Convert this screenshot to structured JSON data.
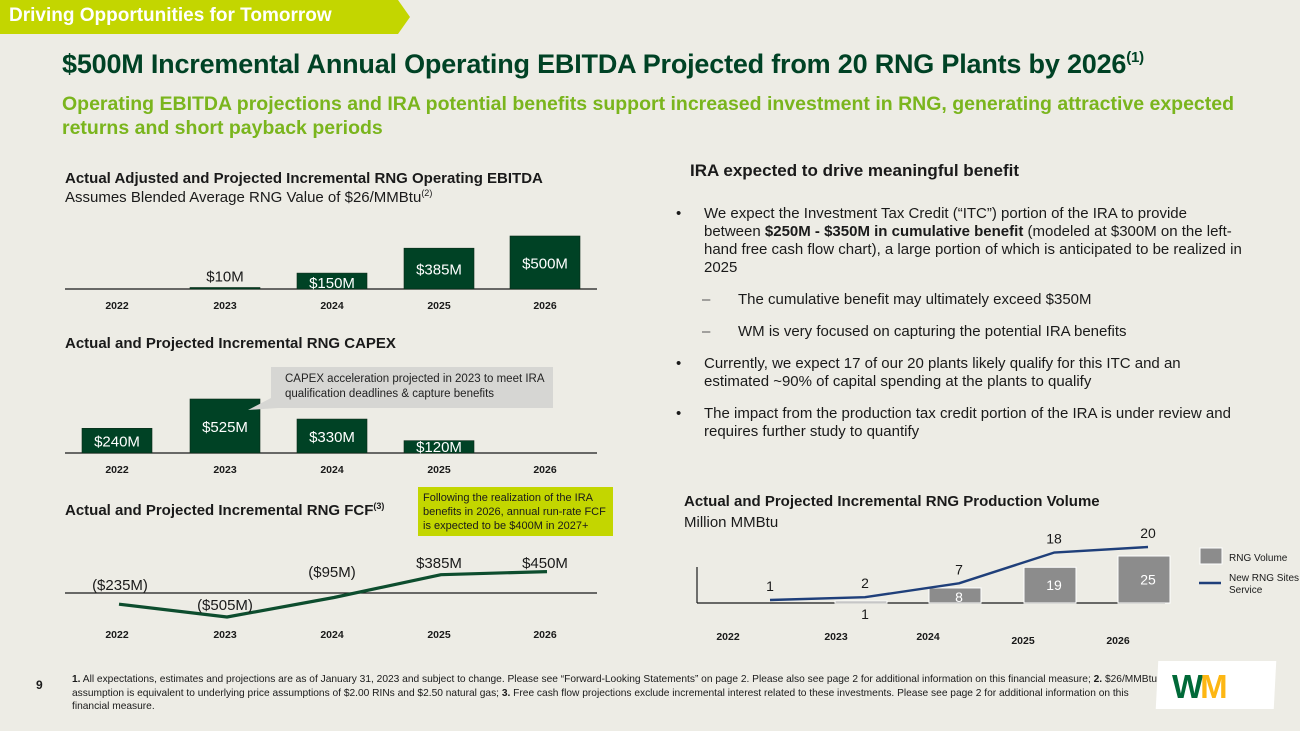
{
  "banner": {
    "text": "Driving Opportunities for Tomorrow",
    "color": "#c3d600"
  },
  "header": {
    "title": "$500M Incremental Annual Operating EBITDA Projected from 20 RNG Plants by 2026",
    "title_sup": "(1)",
    "subtitle": "Operating EBITDA projections and IRA potential benefits support increased investment in RNG, generating attractive expected returns and short payback periods"
  },
  "colors": {
    "dark_green": "#004225",
    "lime": "#7ab51d",
    "gray_bar": "#8c8c8c",
    "navy_line": "#1f3f7a"
  },
  "ebitda_chart": {
    "title": "Actual Adjusted and Projected Incremental RNG Operating EBITDA",
    "subtitle": "Assumes Blended Average RNG Value of $26/MMBtu",
    "subtitle_sup": "(2)"
  },
  "capex_chart": {
    "title": "Actual and Projected Incremental RNG CAPEX",
    "callout": "CAPEX acceleration projected in 2023 to meet IRA qualification deadlines & capture benefits"
  },
  "fcf_chart": {
    "title": "Actual and Projected Incremental RNG FCF",
    "title_sup": "(3)",
    "callout": "Following the realization of the IRA benefits in 2026, annual run-rate FCF is expected to be $400M in 2027+"
  },
  "volume_chart": {
    "title": "Actual and Projected Incremental RNG Production Volume",
    "subtitle": "Million MMBtu"
  },
  "chart_data": [
    {
      "type": "bar",
      "title": "Actual Adjusted and Projected Incremental RNG Operating EBITDA",
      "categories": [
        "2022",
        "2023",
        "2024",
        "2025",
        "2026"
      ],
      "values": [
        0,
        10,
        150,
        385,
        500
      ],
      "labels": [
        "",
        "$10M",
        "$150M",
        "$385M",
        "$500M"
      ],
      "unit": "$M",
      "ylim": [
        0,
        500
      ]
    },
    {
      "type": "bar",
      "title": "Actual and Projected Incremental RNG CAPEX",
      "categories": [
        "2022",
        "2023",
        "2024",
        "2025",
        "2026"
      ],
      "values": [
        240,
        525,
        330,
        120,
        0
      ],
      "labels": [
        "$240M",
        "$525M",
        "$330M",
        "$120M",
        ""
      ],
      "unit": "$M",
      "ylim": [
        0,
        525
      ]
    },
    {
      "type": "line",
      "title": "Actual and Projected Incremental RNG FCF",
      "categories": [
        "2022",
        "2023",
        "2024",
        "2025",
        "2026"
      ],
      "values": [
        -235,
        -505,
        -95,
        385,
        450
      ],
      "labels": [
        "($235M)",
        "($505M)",
        "($95M)",
        "$385M",
        "$450M"
      ],
      "unit": "$M"
    },
    {
      "type": "bar",
      "title": "Actual and Projected Incremental RNG Production Volume",
      "ylabel": "Million MMBtu",
      "categories": [
        "2022",
        "2023",
        "2024",
        "2025",
        "2026"
      ],
      "series": [
        {
          "name": "RNG Volume",
          "type": "bar",
          "values": [
            0,
            1,
            8,
            19,
            25
          ],
          "labels": [
            "",
            "1",
            "8",
            "19",
            "25"
          ]
        },
        {
          "name": "New RNG Sites in Service",
          "type": "line",
          "values": [
            1,
            2,
            7,
            18,
            20
          ],
          "labels": [
            "1",
            "2",
            "7",
            "18",
            "20"
          ]
        }
      ],
      "legend": [
        "RNG Volume",
        "New RNG Sites in Service"
      ],
      "legend_position": "right"
    }
  ],
  "ira": {
    "heading": "IRA expected to drive meaningful benefit",
    "bullet1_pre": "We expect the Investment Tax Credit (“ITC”) portion of the IRA to provide between ",
    "bullet1_bold": "$250M - $350M in cumulative benefit",
    "bullet1_post": " (modeled at $300M on the left-hand free cash flow chart), a large portion of which is anticipated to be realized in 2025",
    "sub1": "The cumulative benefit may ultimately exceed $350M",
    "sub2": "WM is very focused on capturing the potential IRA benefits",
    "bullet2": "Currently, we expect 17 of our 20 plants likely qualify for this ITC and an estimated ~90% of capital spending at the plants to qualify",
    "bullet3": "The impact from the production tax credit portion of the IRA is under review and requires further study to quantify",
    "bullet_char": "•",
    "dash_char": "–"
  },
  "footer": {
    "page_number": "9",
    "fn1_num": "1.",
    "fn1": " All expectations, estimates and projections are as of January 31, 2023 and subject to change. Please see “Forward-Looking Statements” on page 2. Please also see page 2 for additional information on this financial measure; ",
    "fn2_num": "2.",
    "fn2": " $26/MMBtu assumption is equivalent to underlying price assumptions of $2.00 RINs and $2.50 natural gas; ",
    "fn3_num": "3.",
    "fn3": " Free cash flow projections exclude incremental interest related to these investments. Please see page 2 for additional information on this financial measure."
  },
  "logo": {
    "w": "W",
    "m": "M"
  }
}
